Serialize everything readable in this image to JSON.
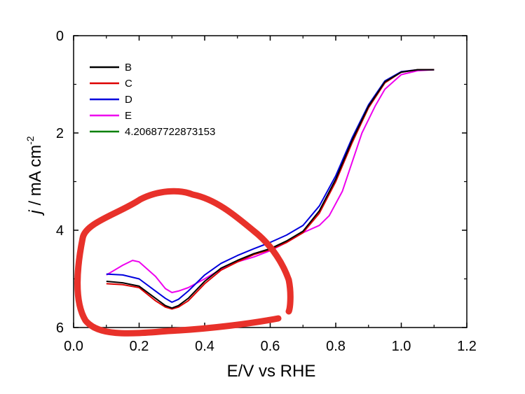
{
  "chart_data": {
    "type": "line",
    "xlabel": "E/V vs RHE",
    "ylabel_italic": "j",
    "ylabel_rest": " / mA cm",
    "ylabel_sup": "-2",
    "xlim": [
      0.0,
      1.2
    ],
    "ylim": [
      6,
      0
    ],
    "y_inverted": true,
    "x_ticks": [
      "0.0",
      "0.2",
      "0.4",
      "0.6",
      "0.8",
      "1.0",
      "1.2"
    ],
    "y_ticks": [
      "0",
      "2",
      "4",
      "6"
    ],
    "grid": false,
    "legend_position": "top-left",
    "series": [
      {
        "name": "B",
        "color": "#000000",
        "x": [
          0.1,
          0.15,
          0.2,
          0.25,
          0.28,
          0.3,
          0.32,
          0.35,
          0.4,
          0.45,
          0.5,
          0.55,
          0.6,
          0.65,
          0.7,
          0.75,
          0.8,
          0.85,
          0.9,
          0.95,
          1.0,
          1.05,
          1.1
        ],
        "y": [
          5.05,
          5.08,
          5.15,
          5.4,
          5.55,
          5.6,
          5.55,
          5.4,
          5.05,
          4.78,
          4.62,
          4.48,
          4.38,
          4.22,
          4.02,
          3.6,
          2.95,
          2.15,
          1.45,
          0.95,
          0.75,
          0.7,
          0.7
        ]
      },
      {
        "name": "C",
        "color": "#dd0000",
        "x": [
          0.1,
          0.15,
          0.2,
          0.25,
          0.28,
          0.3,
          0.32,
          0.35,
          0.4,
          0.45,
          0.5,
          0.55,
          0.6,
          0.65,
          0.7,
          0.75,
          0.8,
          0.85,
          0.9,
          0.95,
          1.0,
          1.05,
          1.1
        ],
        "y": [
          5.1,
          5.12,
          5.18,
          5.45,
          5.58,
          5.62,
          5.58,
          5.45,
          5.1,
          4.82,
          4.65,
          4.5,
          4.4,
          4.25,
          4.05,
          3.65,
          3.0,
          2.2,
          1.48,
          0.97,
          0.75,
          0.7,
          0.7
        ]
      },
      {
        "name": "D",
        "color": "#0000dd",
        "x": [
          0.1,
          0.15,
          0.2,
          0.25,
          0.28,
          0.3,
          0.32,
          0.35,
          0.4,
          0.45,
          0.5,
          0.55,
          0.6,
          0.65,
          0.7,
          0.75,
          0.8,
          0.85,
          0.9,
          0.95,
          1.0,
          1.05,
          1.1
        ],
        "y": [
          4.9,
          4.92,
          5.0,
          5.25,
          5.4,
          5.48,
          5.42,
          5.25,
          4.92,
          4.68,
          4.52,
          4.38,
          4.25,
          4.1,
          3.9,
          3.5,
          2.88,
          2.1,
          1.42,
          0.93,
          0.74,
          0.7,
          0.7
        ]
      },
      {
        "name": "E",
        "color": "#ee00ee",
        "x": [
          0.1,
          0.15,
          0.18,
          0.2,
          0.25,
          0.28,
          0.3,
          0.32,
          0.35,
          0.4,
          0.45,
          0.5,
          0.55,
          0.6,
          0.65,
          0.7,
          0.75,
          0.78,
          0.82,
          0.85,
          0.88,
          0.92,
          0.95,
          1.0,
          1.05,
          1.1
        ],
        "y": [
          4.92,
          4.72,
          4.62,
          4.65,
          4.95,
          5.2,
          5.28,
          5.25,
          5.18,
          5.0,
          4.8,
          4.65,
          4.55,
          4.42,
          4.25,
          4.05,
          3.9,
          3.7,
          3.2,
          2.6,
          2.0,
          1.45,
          1.1,
          0.8,
          0.72,
          0.7
        ]
      },
      {
        "name": "4.20687722873153",
        "color": "#008000",
        "x": [],
        "y": []
      }
    ]
  },
  "annotation": {
    "color": "#e8312a"
  }
}
